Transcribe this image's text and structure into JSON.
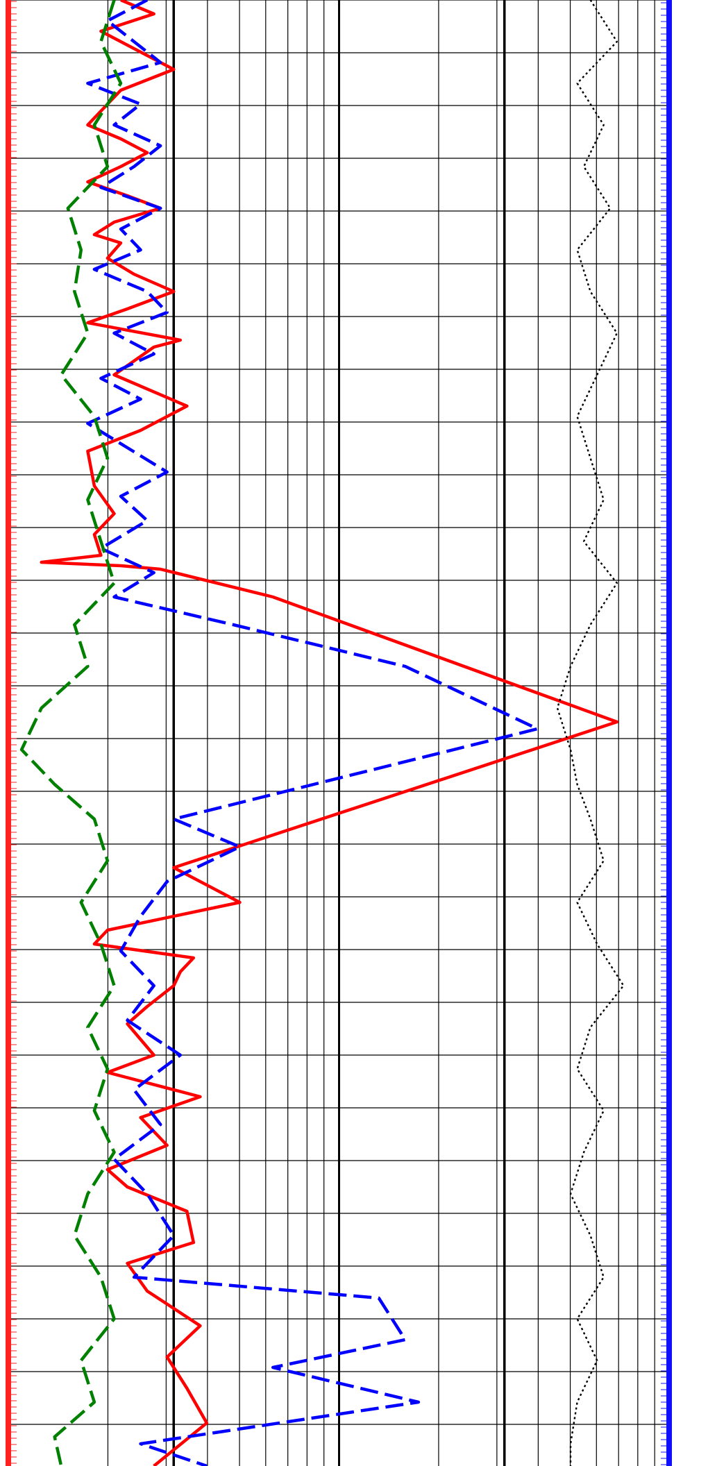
{
  "chart_data": {
    "type": "line",
    "title": "",
    "xlabel": "",
    "ylabel": "",
    "x_scale": "log",
    "x_decades": 2,
    "y_direction": "down",
    "grid": true,
    "legend": "none",
    "series": [
      {
        "id": "red-solid",
        "color": "#ff0000",
        "style": "solid",
        "points": [
          [
            0.17,
            0
          ],
          [
            0.22,
            20
          ],
          [
            0.14,
            45
          ],
          [
            0.19,
            70
          ],
          [
            0.25,
            100
          ],
          [
            0.17,
            130
          ],
          [
            0.14,
            160
          ],
          [
            0.12,
            180
          ],
          [
            0.17,
            200
          ],
          [
            0.21,
            220
          ],
          [
            0.17,
            240
          ],
          [
            0.12,
            262
          ],
          [
            0.18,
            282
          ],
          [
            0.23,
            300
          ],
          [
            0.16,
            320
          ],
          [
            0.13,
            338
          ],
          [
            0.17,
            350
          ],
          [
            0.15,
            372
          ],
          [
            0.19,
            395
          ],
          [
            0.25,
            420
          ],
          [
            0.18,
            445
          ],
          [
            0.12,
            465
          ],
          [
            0.26,
            490
          ],
          [
            0.22,
            500
          ],
          [
            0.16,
            540
          ],
          [
            0.27,
            585
          ],
          [
            0.2,
            620
          ],
          [
            0.12,
            650
          ],
          [
            0.13,
            700
          ],
          [
            0.16,
            740
          ],
          [
            0.13,
            770
          ],
          [
            0.14,
            800
          ],
          [
            0.05,
            810
          ],
          [
            0.17,
            815
          ],
          [
            0.23,
            820
          ],
          [
            0.4,
            860
          ],
          [
            0.92,
            1040
          ],
          [
            0.25,
            1250
          ],
          [
            0.35,
            1300
          ],
          [
            0.15,
            1340
          ],
          [
            0.13,
            1360
          ],
          [
            0.28,
            1380
          ],
          [
            0.26,
            1400
          ],
          [
            0.25,
            1420
          ],
          [
            0.21,
            1450
          ],
          [
            0.18,
            1475
          ],
          [
            0.22,
            1520
          ],
          [
            0.15,
            1545
          ],
          [
            0.29,
            1580
          ],
          [
            0.2,
            1610
          ],
          [
            0.24,
            1650
          ],
          [
            0.15,
            1685
          ],
          [
            0.18,
            1710
          ],
          [
            0.27,
            1745
          ],
          [
            0.28,
            1790
          ],
          [
            0.18,
            1820
          ],
          [
            0.21,
            1860
          ],
          [
            0.29,
            1910
          ],
          [
            0.24,
            1955
          ],
          [
            0.27,
            2000
          ],
          [
            0.3,
            2050
          ],
          [
            0.22,
            2112
          ]
        ]
      },
      {
        "id": "blue-dashed",
        "color": "#0000ff",
        "style": "dashed",
        "points": [
          [
            0.21,
            0
          ],
          [
            0.15,
            30
          ],
          [
            0.19,
            60
          ],
          [
            0.23,
            90
          ],
          [
            0.12,
            120
          ],
          [
            0.2,
            150
          ],
          [
            0.16,
            180
          ],
          [
            0.23,
            210
          ],
          [
            0.19,
            240
          ],
          [
            0.14,
            270
          ],
          [
            0.23,
            300
          ],
          [
            0.17,
            330
          ],
          [
            0.2,
            360
          ],
          [
            0.13,
            388
          ],
          [
            0.21,
            420
          ],
          [
            0.24,
            450
          ],
          [
            0.16,
            480
          ],
          [
            0.22,
            510
          ],
          [
            0.14,
            545
          ],
          [
            0.2,
            575
          ],
          [
            0.12,
            610
          ],
          [
            0.18,
            645
          ],
          [
            0.24,
            680
          ],
          [
            0.17,
            715
          ],
          [
            0.21,
            750
          ],
          [
            0.14,
            790
          ],
          [
            0.22,
            825
          ],
          [
            0.16,
            860
          ],
          [
            0.34,
            900
          ],
          [
            0.6,
            960
          ],
          [
            0.8,
            1050
          ],
          [
            0.25,
            1180
          ],
          [
            0.35,
            1220
          ],
          [
            0.24,
            1270
          ],
          [
            0.2,
            1320
          ],
          [
            0.17,
            1370
          ],
          [
            0.22,
            1420
          ],
          [
            0.18,
            1470
          ],
          [
            0.26,
            1520
          ],
          [
            0.19,
            1570
          ],
          [
            0.23,
            1620
          ],
          [
            0.16,
            1670
          ],
          [
            0.21,
            1720
          ],
          [
            0.25,
            1780
          ],
          [
            0.19,
            1840
          ],
          [
            0.56,
            1870
          ],
          [
            0.6,
            1930
          ],
          [
            0.4,
            1970
          ],
          [
            0.62,
            2020
          ],
          [
            0.2,
            2080
          ],
          [
            0.3,
            2112
          ]
        ]
      },
      {
        "id": "green-dashed",
        "color": "#008000",
        "style": "dashed",
        "points": [
          [
            0.16,
            0
          ],
          [
            0.14,
            60
          ],
          [
            0.17,
            120
          ],
          [
            0.13,
            180
          ],
          [
            0.15,
            240
          ],
          [
            0.09,
            300
          ],
          [
            0.11,
            360
          ],
          [
            0.1,
            420
          ],
          [
            0.12,
            480
          ],
          [
            0.08,
            540
          ],
          [
            0.13,
            600
          ],
          [
            0.15,
            660
          ],
          [
            0.12,
            720
          ],
          [
            0.14,
            780
          ],
          [
            0.16,
            840
          ],
          [
            0.1,
            900
          ],
          [
            0.12,
            960
          ],
          [
            0.05,
            1020
          ],
          [
            0.02,
            1080
          ],
          [
            0.07,
            1130
          ],
          [
            0.13,
            1180
          ],
          [
            0.15,
            1240
          ],
          [
            0.11,
            1300
          ],
          [
            0.14,
            1360
          ],
          [
            0.16,
            1420
          ],
          [
            0.12,
            1480
          ],
          [
            0.15,
            1540
          ],
          [
            0.13,
            1600
          ],
          [
            0.16,
            1660
          ],
          [
            0.12,
            1720
          ],
          [
            0.1,
            1780
          ],
          [
            0.14,
            1840
          ],
          [
            0.16,
            1900
          ],
          [
            0.11,
            1960
          ],
          [
            0.13,
            2020
          ],
          [
            0.07,
            2070
          ],
          [
            0.08,
            2112
          ]
        ]
      },
      {
        "id": "black-dotted",
        "color": "#000000",
        "style": "dotted",
        "points": [
          [
            0.88,
            0
          ],
          [
            0.92,
            60
          ],
          [
            0.86,
            120
          ],
          [
            0.9,
            180
          ],
          [
            0.87,
            240
          ],
          [
            0.91,
            300
          ],
          [
            0.86,
            360
          ],
          [
            0.88,
            420
          ],
          [
            0.92,
            480
          ],
          [
            0.89,
            540
          ],
          [
            0.86,
            600
          ],
          [
            0.88,
            660
          ],
          [
            0.9,
            720
          ],
          [
            0.87,
            780
          ],
          [
            0.92,
            840
          ],
          [
            0.88,
            900
          ],
          [
            0.85,
            960
          ],
          [
            0.83,
            1020
          ],
          [
            0.85,
            1080
          ],
          [
            0.86,
            1130
          ],
          [
            0.88,
            1180
          ],
          [
            0.9,
            1240
          ],
          [
            0.86,
            1300
          ],
          [
            0.89,
            1360
          ],
          [
            0.93,
            1420
          ],
          [
            0.88,
            1480
          ],
          [
            0.86,
            1540
          ],
          [
            0.9,
            1600
          ],
          [
            0.87,
            1660
          ],
          [
            0.85,
            1720
          ],
          [
            0.88,
            1780
          ],
          [
            0.9,
            1840
          ],
          [
            0.86,
            1900
          ],
          [
            0.89,
            1960
          ],
          [
            0.86,
            2020
          ],
          [
            0.85,
            2080
          ],
          [
            0.85,
            2112
          ]
        ]
      }
    ]
  }
}
